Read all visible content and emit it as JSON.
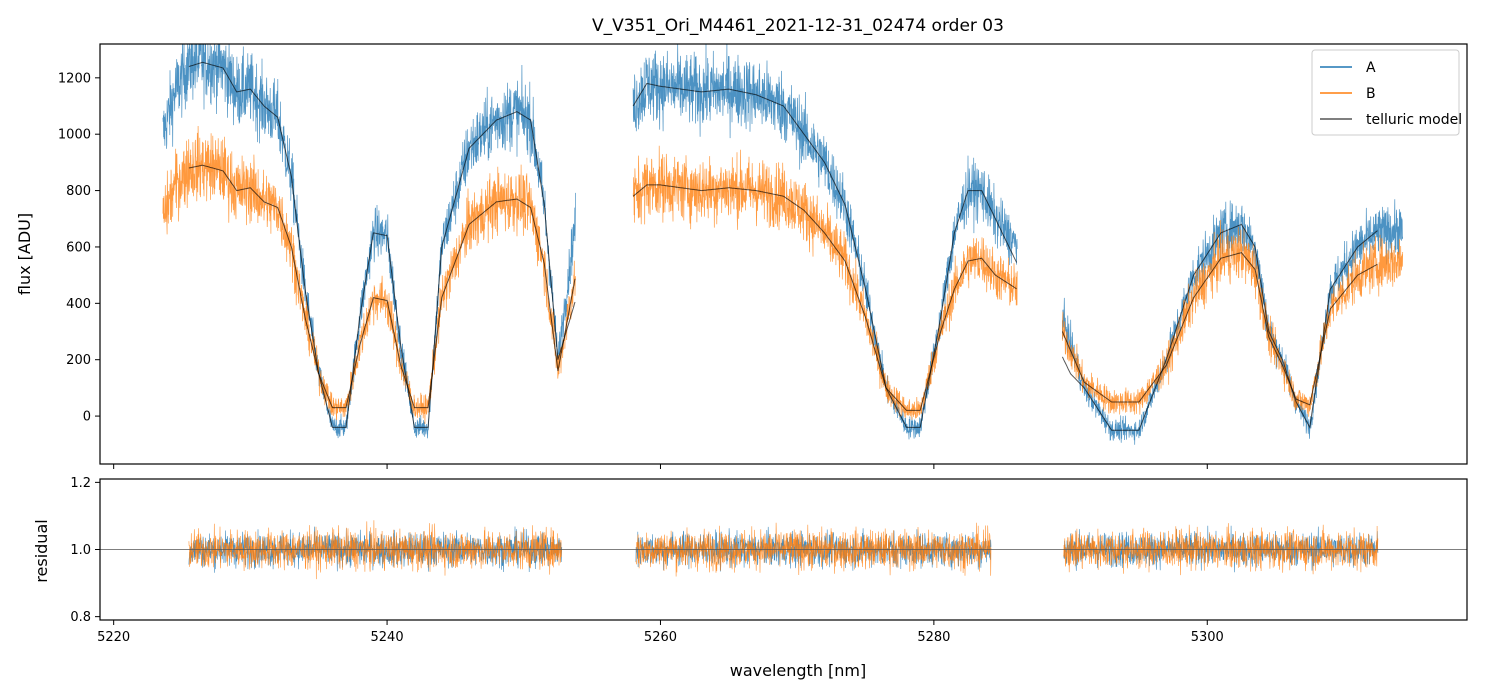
{
  "chart_data": [
    {
      "type": "line",
      "panel": "top",
      "title": "V_V351_Ori_M4461_2021-12-31_02474  order 03",
      "xlabel": "",
      "ylabel": "flux [ADU]",
      "xlim": [
        5219,
        5319
      ],
      "ylim": [
        -170,
        1320
      ],
      "yticks": [
        0,
        200,
        400,
        600,
        800,
        1000,
        1200
      ],
      "yticklabels": [
        "0",
        "200",
        "400",
        "600",
        "800",
        "1000",
        "1200"
      ],
      "xticks": [
        5220,
        5240,
        5260,
        5280,
        5300
      ],
      "legend": {
        "location": "top-right",
        "entries": [
          "A",
          "B",
          "telluric model"
        ]
      },
      "segments": [
        {
          "x": [
            5223.6,
            5253.8
          ]
        },
        {
          "x": [
            5258.0,
            5286.1
          ]
        },
        {
          "x": [
            5289.4,
            5314.3
          ]
        }
      ],
      "series": [
        {
          "name": "A",
          "color": "#1f77b4",
          "x": [
            5223.6,
            5224.5,
            5225.5,
            5226.5,
            5228,
            5229,
            5230,
            5231,
            5232,
            5233,
            5234,
            5235,
            5236,
            5237,
            5238,
            5239,
            5240,
            5241,
            5242,
            5243,
            5244,
            5246,
            5248,
            5249.5,
            5250.5,
            5251.5,
            5252.5,
            5253.8,
            5258.0,
            5259,
            5260,
            5261.5,
            5263,
            5265,
            5267,
            5269,
            5270.5,
            5272,
            5273.5,
            5275,
            5276.5,
            5278,
            5279,
            5280.5,
            5281.5,
            5282.5,
            5283.5,
            5284.5,
            5286.1,
            5289.4,
            5291,
            5293,
            5295,
            5297,
            5299,
            5301,
            5302.5,
            5303.5,
            5304.5,
            5305.5,
            5306.5,
            5307.5,
            5309,
            5311,
            5312.5,
            5314.3
          ],
          "y": [
            1000,
            1150,
            1250,
            1260,
            1240,
            1150,
            1160,
            1100,
            1060,
            850,
            450,
            150,
            -40,
            -40,
            350,
            650,
            640,
            250,
            -40,
            -40,
            600,
            950,
            1050,
            1080,
            1050,
            750,
            200,
            700,
            1100,
            1180,
            1170,
            1160,
            1150,
            1160,
            1140,
            1100,
            1000,
            900,
            750,
            450,
            100,
            -40,
            -40,
            350,
            650,
            800,
            800,
            700,
            600,
            350,
            100,
            -50,
            -50,
            200,
            500,
            650,
            680,
            600,
            300,
            200,
            50,
            -40,
            450,
            600,
            650,
            660
          ]
        },
        {
          "name": "B",
          "color": "#ff7f0e",
          "x": [
            5223.6,
            5224.5,
            5225.5,
            5226.5,
            5228,
            5229,
            5230,
            5231,
            5232,
            5233,
            5234,
            5235,
            5236,
            5237,
            5238,
            5239,
            5240,
            5241,
            5242,
            5243,
            5244,
            5246,
            5248,
            5249.5,
            5250.5,
            5251.5,
            5252.5,
            5253.8,
            5258.0,
            5259,
            5260,
            5261.5,
            5263,
            5265,
            5267,
            5269,
            5270.5,
            5272,
            5273.5,
            5275,
            5276.5,
            5278,
            5279,
            5280.5,
            5281.5,
            5282.5,
            5283.5,
            5284.5,
            5286.1,
            5289.4,
            5291,
            5293,
            5295,
            5297,
            5299,
            5301,
            5302.5,
            5303.5,
            5304.5,
            5305.5,
            5306.5,
            5307.5,
            5309,
            5311,
            5312.5,
            5314.3
          ],
          "y": [
            700,
            820,
            880,
            890,
            870,
            800,
            810,
            760,
            740,
            600,
            350,
            150,
            30,
            30,
            250,
            420,
            410,
            180,
            30,
            30,
            420,
            680,
            760,
            770,
            740,
            540,
            160,
            500,
            780,
            820,
            820,
            810,
            800,
            810,
            800,
            780,
            730,
            650,
            550,
            350,
            100,
            20,
            20,
            300,
            450,
            550,
            560,
            500,
            450,
            300,
            120,
            50,
            50,
            180,
            420,
            560,
            580,
            520,
            280,
            180,
            60,
            40,
            380,
            500,
            540,
            550
          ]
        },
        {
          "name": "telluric model",
          "color": "#000000",
          "x": [
            5225.5,
            5226.5,
            5228,
            5229,
            5230,
            5231,
            5232,
            5233,
            5234,
            5235,
            5236,
            5237,
            5238,
            5239,
            5240,
            5241,
            5242,
            5243,
            5244,
            5246,
            5248,
            5249.5,
            5250.5,
            5251.5,
            5252.5,
            5258.0,
            5259,
            5260,
            5261.5,
            5263,
            5265,
            5267,
            5269,
            5270.5,
            5272,
            5273.5,
            5275,
            5276.5,
            5278,
            5279,
            5280.5,
            5281.5,
            5282.5,
            5283.5,
            5284.5,
            5290,
            5291,
            5293,
            5295,
            5297,
            5299,
            5301,
            5302.5,
            5303.5,
            5304.5,
            5305.5,
            5306.5,
            5307.5,
            5309,
            5311,
            5312.5
          ],
          "y": [
            1240,
            1255,
            1235,
            1150,
            1160,
            1100,
            1060,
            850,
            450,
            150,
            -40,
            -40,
            350,
            650,
            640,
            250,
            -40,
            -40,
            600,
            950,
            1050,
            1080,
            1050,
            750,
            200,
            1100,
            1180,
            1170,
            1160,
            1150,
            1160,
            1140,
            1100,
            1000,
            900,
            750,
            450,
            100,
            -40,
            -40,
            350,
            650,
            800,
            800,
            700,
            150,
            100,
            -50,
            -50,
            200,
            500,
            650,
            680,
            600,
            300,
            200,
            50,
            -40,
            450,
            600,
            660
          ]
        }
      ]
    },
    {
      "type": "line",
      "panel": "bottom",
      "title": "",
      "xlabel": "wavelength [nm]",
      "ylabel": "residual",
      "xlim": [
        5219,
        5319
      ],
      "ylim": [
        0.79,
        1.21
      ],
      "yticks": [
        0.8,
        1.0,
        1.2
      ],
      "yticklabels": [
        "0.8",
        "1.0",
        "1.2"
      ],
      "xticks": [
        5220,
        5240,
        5260,
        5280,
        5300
      ],
      "xticklabels": [
        "5220",
        "5240",
        "5260",
        "5280",
        "5300"
      ],
      "reference_line": 1.0,
      "segments": [
        {
          "x": [
            5225.5,
            5252.8
          ]
        },
        {
          "x": [
            5258.2,
            5284.2
          ]
        },
        {
          "x": [
            5289.5,
            5312.5
          ]
        }
      ],
      "series": [
        {
          "name": "A",
          "color": "#1f77b4",
          "center": 1.0,
          "spread": 0.06
        },
        {
          "name": "B",
          "color": "#ff7f0e",
          "center": 1.0,
          "spread": 0.07
        }
      ]
    }
  ]
}
